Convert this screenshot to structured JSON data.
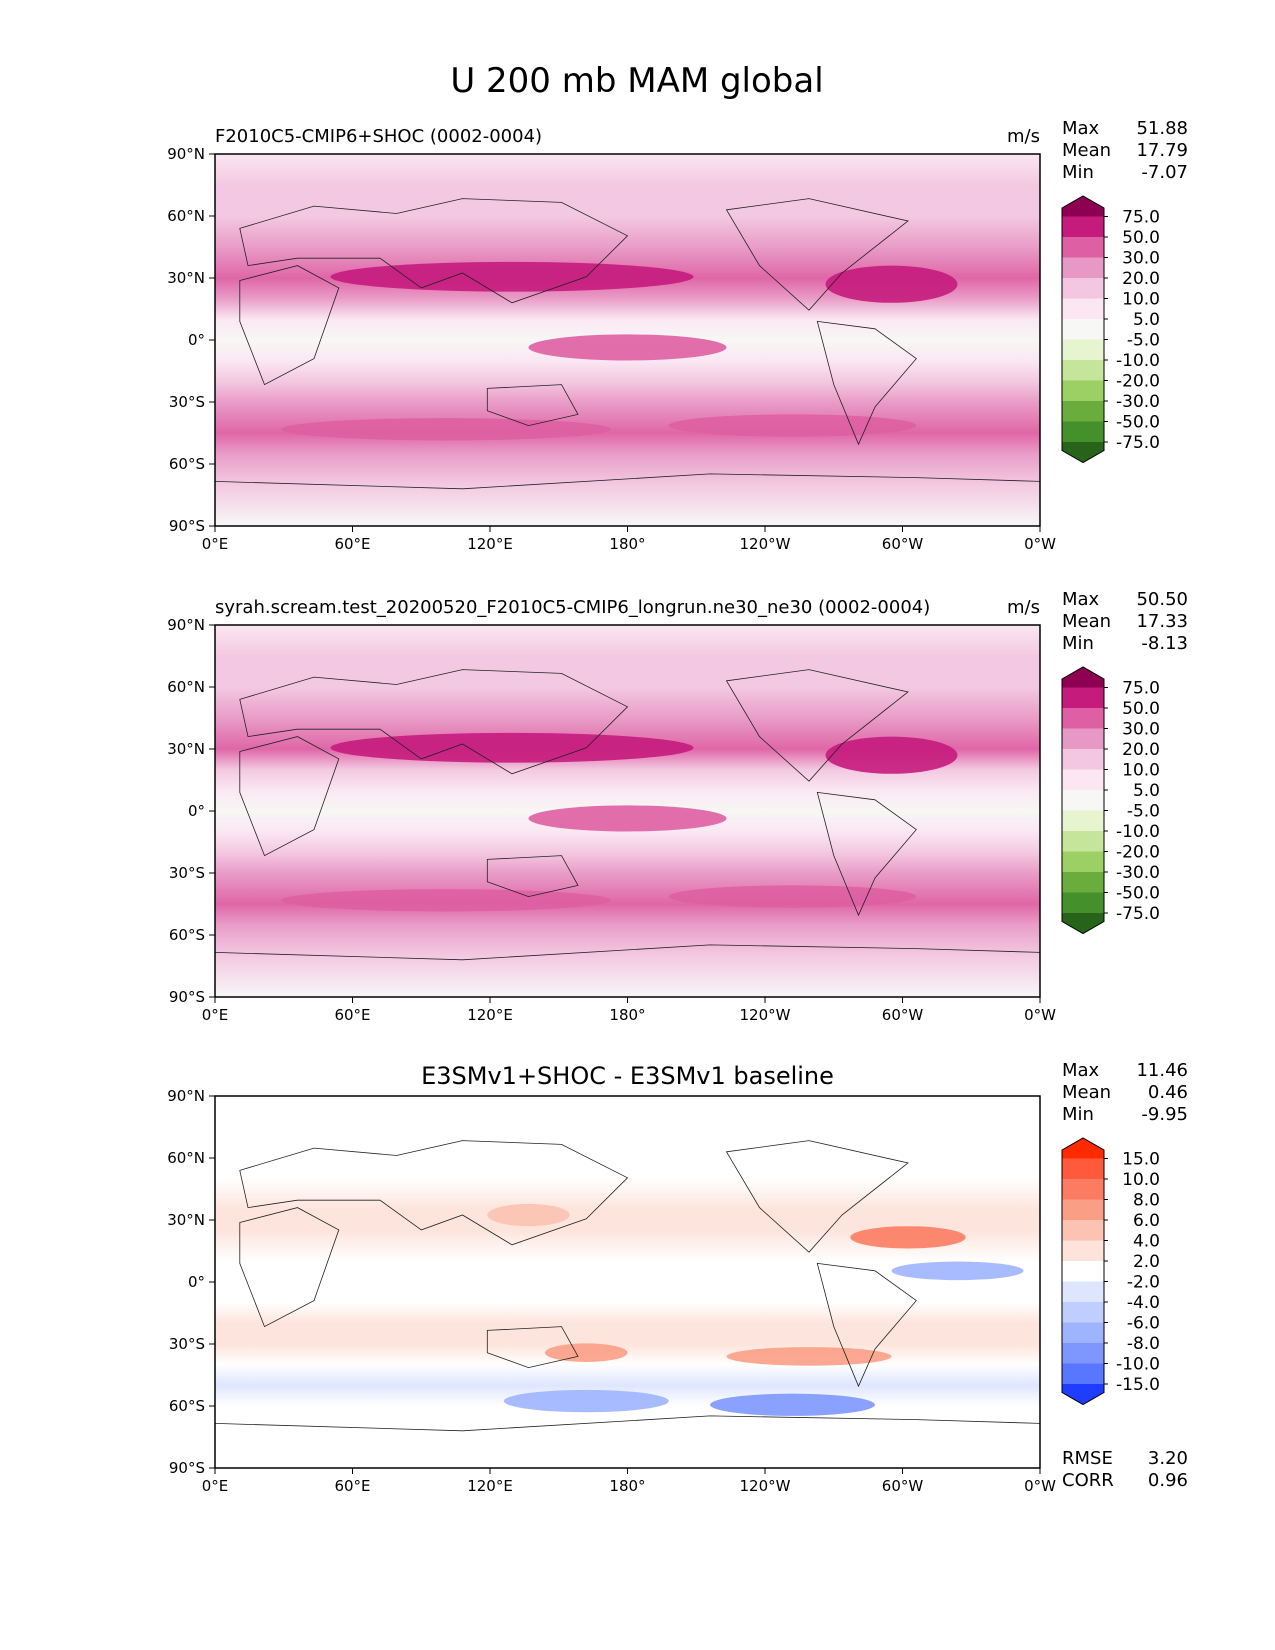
{
  "figure": {
    "title": "U 200 mb MAM global"
  },
  "chart_data": [
    {
      "type": "heatmap",
      "title": "F2010C5-CMIP6+SHOC (0002-0004)",
      "units": "m/s",
      "stats": {
        "max_label": "Max",
        "max": "51.88",
        "mean_label": "Mean",
        "mean": "17.79",
        "min_label": "Min",
        "min": "-7.07"
      },
      "xlabels": [
        "0°E",
        "60°E",
        "120°E",
        "180°",
        "120°W",
        "60°W",
        "0°W"
      ],
      "ylabels": [
        "90°N",
        "60°N",
        "30°N",
        "0°",
        "30°S",
        "60°S",
        "90°S"
      ],
      "colorbar": {
        "levels": [
          "75.0",
          "50.0",
          "30.0",
          "20.0",
          "10.0",
          "5.0",
          "-5.0",
          "-10.0",
          "-20.0",
          "-30.0",
          "-50.0",
          "-75.0"
        ],
        "colors": [
          "#8e0152",
          "#c51b7d",
          "#de5fa3",
          "#e898c5",
          "#f3c6e1",
          "#fbe6f2",
          "#f7f7f5",
          "#e6f5d0",
          "#c5e69a",
          "#9ccf64",
          "#6aad3d",
          "#44902a",
          "#276419"
        ]
      },
      "field": [
        {
          "lat": 90,
          "u": 5
        },
        {
          "lat": 75,
          "u": 12
        },
        {
          "lat": 60,
          "u": 18
        },
        {
          "lat": 45,
          "u": 24
        },
        {
          "lat": 30,
          "u": 38
        },
        {
          "lat": 20,
          "u": 20
        },
        {
          "lat": 10,
          "u": 8
        },
        {
          "lat": 0,
          "u": 1
        },
        {
          "lat": -10,
          "u": 6
        },
        {
          "lat": -20,
          "u": 18
        },
        {
          "lat": -30,
          "u": 28
        },
        {
          "lat": -45,
          "u": 34
        },
        {
          "lat": -55,
          "u": 24
        },
        {
          "lat": -70,
          "u": 12
        },
        {
          "lat": -90,
          "u": 4
        }
      ]
    },
    {
      "type": "heatmap",
      "title": "syrah.scream.test_20200520_F2010C5-CMIP6_longrun.ne30_ne30 (0002-0004)",
      "units": "m/s",
      "stats": {
        "max_label": "Max",
        "max": "50.50",
        "mean_label": "Mean",
        "mean": "17.33",
        "min_label": "Min",
        "min": "-8.13"
      },
      "xlabels": [
        "0°E",
        "60°E",
        "120°E",
        "180°",
        "120°W",
        "60°W",
        "0°W"
      ],
      "ylabels": [
        "90°N",
        "60°N",
        "30°N",
        "0°",
        "30°S",
        "60°S",
        "90°S"
      ],
      "colorbar": {
        "levels": [
          "75.0",
          "50.0",
          "30.0",
          "20.0",
          "10.0",
          "5.0",
          "-5.0",
          "-10.0",
          "-20.0",
          "-30.0",
          "-50.0",
          "-75.0"
        ],
        "colors": [
          "#8e0152",
          "#c51b7d",
          "#de5fa3",
          "#e898c5",
          "#f3c6e1",
          "#fbe6f2",
          "#f7f7f5",
          "#e6f5d0",
          "#c5e69a",
          "#9ccf64",
          "#6aad3d",
          "#44902a",
          "#276419"
        ]
      },
      "field": [
        {
          "lat": 90,
          "u": 5
        },
        {
          "lat": 75,
          "u": 12
        },
        {
          "lat": 60,
          "u": 18
        },
        {
          "lat": 45,
          "u": 24
        },
        {
          "lat": 30,
          "u": 36
        },
        {
          "lat": 20,
          "u": 19
        },
        {
          "lat": 10,
          "u": 7
        },
        {
          "lat": 0,
          "u": 0
        },
        {
          "lat": -10,
          "u": 6
        },
        {
          "lat": -20,
          "u": 18
        },
        {
          "lat": -30,
          "u": 27
        },
        {
          "lat": -45,
          "u": 35
        },
        {
          "lat": -55,
          "u": 23
        },
        {
          "lat": -70,
          "u": 11
        },
        {
          "lat": -90,
          "u": 3
        }
      ]
    },
    {
      "type": "heatmap",
      "title": "E3SMv1+SHOC - E3SMv1 baseline",
      "units": "",
      "stats": {
        "max_label": "Max",
        "max": "11.46",
        "mean_label": "Mean",
        "mean": "0.46",
        "min_label": "Min",
        "min": "-9.95"
      },
      "metrics": {
        "rmse_label": "RMSE",
        "rmse": "3.20",
        "corr_label": "CORR",
        "corr": "0.96"
      },
      "xlabels": [
        "0°E",
        "60°E",
        "120°E",
        "180°",
        "120°W",
        "60°W",
        "0°W"
      ],
      "ylabels": [
        "90°N",
        "60°N",
        "30°N",
        "0°",
        "30°S",
        "60°S",
        "90°S"
      ],
      "colorbar": {
        "levels": [
          "15.0",
          "10.0",
          "8.0",
          "6.0",
          "4.0",
          "2.0",
          "-2.0",
          "-4.0",
          "-6.0",
          "-8.0",
          "-10.0",
          "-15.0"
        ],
        "colors": [
          "#ff2a00",
          "#ff5a3c",
          "#fc7c62",
          "#fb9e86",
          "#fcc2b2",
          "#fde3da",
          "#ffffff",
          "#dde5ff",
          "#c0ceff",
          "#9fb4ff",
          "#7d97ff",
          "#5876ff",
          "#1f3dff"
        ]
      },
      "field": [
        {
          "lat": 90,
          "u": 1
        },
        {
          "lat": 70,
          "u": -1
        },
        {
          "lat": 50,
          "u": 0.5
        },
        {
          "lat": 35,
          "u": 3
        },
        {
          "lat": 25,
          "u": 3.5
        },
        {
          "lat": 10,
          "u": 0
        },
        {
          "lat": 0,
          "u": -1
        },
        {
          "lat": -10,
          "u": 0.5
        },
        {
          "lat": -20,
          "u": 3
        },
        {
          "lat": -30,
          "u": 2
        },
        {
          "lat": -40,
          "u": 1
        },
        {
          "lat": -50,
          "u": -3
        },
        {
          "lat": -60,
          "u": -2
        },
        {
          "lat": -75,
          "u": 0
        },
        {
          "lat": -90,
          "u": 0.5
        }
      ]
    }
  ]
}
